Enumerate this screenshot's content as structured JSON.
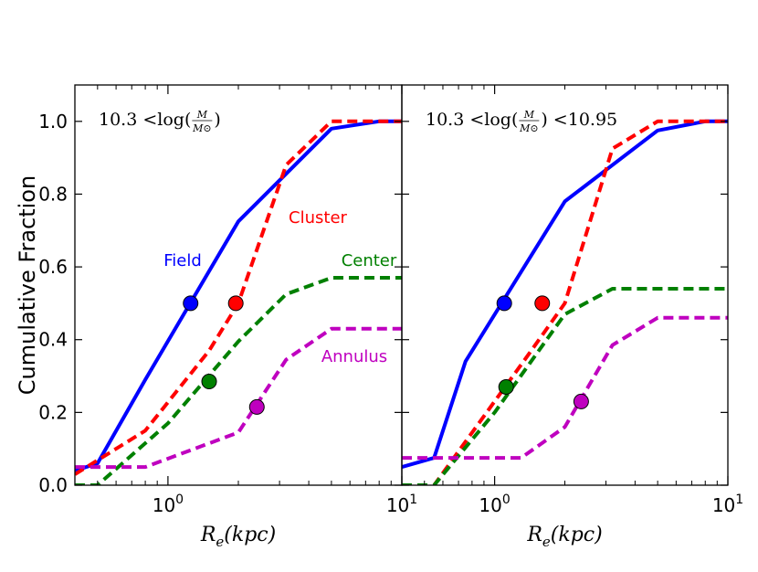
{
  "chart_data": [
    {
      "type": "line",
      "panel": "left",
      "title": "",
      "annotation": {
        "prefix": "10.3 <log(",
        "num": "M",
        "den": "M⊙",
        "suffix": ")"
      },
      "xlabel": "R_e(kpc)",
      "ylabel": "Cumulative Fraction",
      "xscale": "log",
      "xlim": [
        0.4,
        10
      ],
      "ylim": [
        0,
        1.1
      ],
      "yticks": [
        0.0,
        0.2,
        0.4,
        0.6,
        0.8,
        1.0
      ],
      "ytick_labels": [
        "0.0",
        "0.2",
        "0.4",
        "0.6",
        "0.8",
        "1.0"
      ],
      "xtick_labels": [
        {
          "base": "10",
          "exp": "0"
        },
        {
          "base": "10",
          "exp": "1"
        }
      ],
      "series": [
        {
          "name": "Field",
          "color": "#0000ff",
          "dash": "solid",
          "x": [
            0.4,
            0.5,
            0.8,
            2.0,
            5.0,
            8.0,
            10.0
          ],
          "y": [
            0.04,
            0.06,
            0.29,
            0.725,
            0.98,
            1.0,
            1.0
          ],
          "marker": {
            "x": 1.25,
            "y": 0.5
          },
          "label_pos": "upper-left"
        },
        {
          "name": "Cluster",
          "color": "#ff0000",
          "dash": "dashed",
          "x": [
            0.4,
            0.8,
            1.5,
            2.0,
            3.2,
            5.0,
            10.0
          ],
          "y": [
            0.03,
            0.15,
            0.37,
            0.5,
            0.88,
            1.0,
            1.0
          ],
          "marker": {
            "x": 1.95,
            "y": 0.5
          },
          "label_pos": "upper-right"
        },
        {
          "name": "Center",
          "color": "#008000",
          "dash": "dashed",
          "x": [
            0.4,
            0.5,
            1.0,
            2.0,
            3.2,
            5.0,
            10.0
          ],
          "y": [
            0.0,
            0.0,
            0.17,
            0.395,
            0.525,
            0.57,
            0.57
          ],
          "marker": {
            "x": 1.5,
            "y": 0.285
          },
          "label_pos": "right"
        },
        {
          "name": "Annulus",
          "color": "#bf00bf",
          "dash": "dashed",
          "x": [
            0.4,
            0.5,
            0.8,
            2.0,
            3.2,
            5.0,
            10.0
          ],
          "y": [
            0.05,
            0.05,
            0.05,
            0.145,
            0.345,
            0.43,
            0.43
          ],
          "marker": {
            "x": 2.4,
            "y": 0.215
          },
          "label_pos": "right"
        }
      ]
    },
    {
      "type": "line",
      "panel": "right",
      "title": "",
      "annotation": {
        "prefix": "10.3 <log(",
        "num": "M",
        "den": "M⊙",
        "suffix": ") <10.95"
      },
      "xlabel": "R_e(kpc)",
      "ylabel": "",
      "xscale": "log",
      "xlim": [
        0.4,
        10
      ],
      "ylim": [
        0,
        1.1
      ],
      "yticks": [
        0.0,
        0.2,
        0.4,
        0.6,
        0.8,
        1.0
      ],
      "ytick_labels": [],
      "xtick_labels": [
        {
          "base": "10",
          "exp": "0"
        },
        {
          "base": "10",
          "exp": "1"
        }
      ],
      "series": [
        {
          "name": "Field",
          "color": "#0000ff",
          "dash": "solid",
          "x": [
            0.4,
            0.55,
            0.75,
            2.0,
            5.0,
            8.0,
            10.0
          ],
          "y": [
            0.05,
            0.075,
            0.34,
            0.78,
            0.975,
            1.0,
            1.0
          ],
          "marker": {
            "x": 1.1,
            "y": 0.5
          }
        },
        {
          "name": "Cluster",
          "color": "#ff0000",
          "dash": "dashed",
          "x": [
            0.4,
            0.55,
            1.4,
            2.0,
            3.2,
            5.0,
            10.0
          ],
          "y": [
            0.0,
            0.0,
            0.36,
            0.5,
            0.925,
            1.0,
            1.0
          ],
          "marker": {
            "x": 1.6,
            "y": 0.5
          }
        },
        {
          "name": "Center",
          "color": "#008000",
          "dash": "dashed",
          "x": [
            0.4,
            0.55,
            1.0,
            2.0,
            3.2,
            5.0,
            10.0
          ],
          "y": [
            0.0,
            0.0,
            0.2,
            0.47,
            0.54,
            0.54,
            0.54
          ],
          "marker": {
            "x": 1.12,
            "y": 0.27
          }
        },
        {
          "name": "Annulus",
          "color": "#bf00bf",
          "dash": "dashed",
          "x": [
            0.4,
            0.5,
            0.8,
            1.3,
            2.0,
            3.2,
            5.0,
            10.0
          ],
          "y": [
            0.075,
            0.075,
            0.075,
            0.075,
            0.16,
            0.385,
            0.46,
            0.46
          ],
          "marker": {
            "x": 2.35,
            "y": 0.23
          }
        }
      ]
    }
  ]
}
